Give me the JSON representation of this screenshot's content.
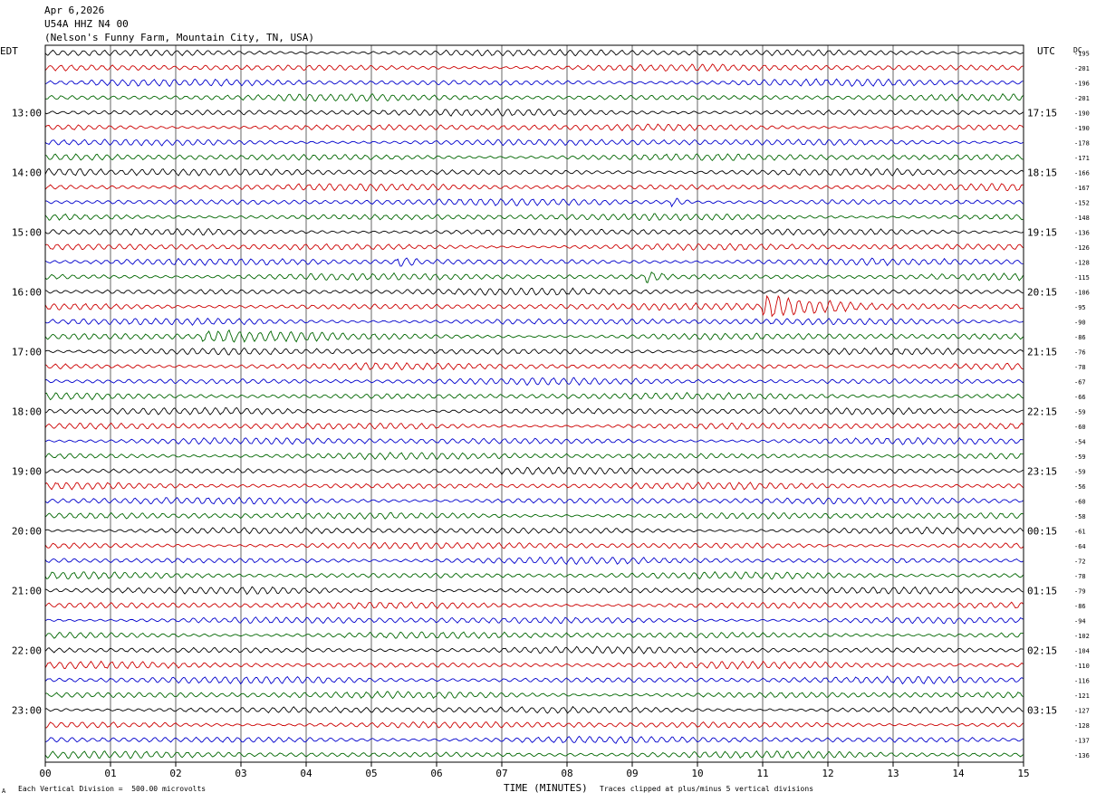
{
  "header": {
    "date": "Apr 6,2026",
    "station": "U54A HHZ N4 00",
    "location": "(Nelson's Funny Farm, Mountain City, TN, USA)"
  },
  "left_axis_label": "EDT",
  "right_axis_label": "UTC",
  "dc_label": "DC",
  "footer": {
    "scale": "Each Vertical Division =  500.00 microvolts",
    "clip": "Traces clipped at plus/minus 5 vertical divisions",
    "corner_mark": "A"
  },
  "chart_data": {
    "type": "line",
    "title": "",
    "xlabel": "TIME (MINUTES)",
    "ylabel": "",
    "x_ticks": [
      "00",
      "01",
      "02",
      "03",
      "04",
      "05",
      "06",
      "07",
      "08",
      "09",
      "10",
      "11",
      "12",
      "13",
      "14",
      "15"
    ],
    "xlim": [
      0,
      15
    ],
    "grid": true,
    "trace_colors": [
      "#000000",
      "#cc0000",
      "#0000cc",
      "#006600"
    ],
    "left_hour_labels": [
      "13:00",
      "14:00",
      "15:00",
      "16:00",
      "17:00",
      "18:00",
      "19:00",
      "20:00",
      "21:00",
      "22:00",
      "23:00"
    ],
    "right_hour_labels": [
      "17:15",
      "18:15",
      "19:15",
      "20:15",
      "21:15",
      "22:15",
      "23:15",
      "00:15",
      "01:15",
      "02:15",
      "03:15"
    ],
    "dc_offsets": [
      "-195",
      "-201",
      "-196",
      "-201",
      "-190",
      "-190",
      "-178",
      "-171",
      "-166",
      "-167",
      "-152",
      "-148",
      "-136",
      "-126",
      "-128",
      "-115",
      "-106",
      "-95",
      "-90",
      "-86",
      "-76",
      "-78",
      "-67",
      "-66",
      "-59",
      "-60",
      "-54",
      "-59",
      "-59",
      "-56",
      "-60",
      "-58",
      "-61",
      "-64",
      "-72",
      "-78",
      "-79",
      "-86",
      "-94",
      "-102",
      "-104",
      "-110",
      "-116",
      "-121",
      "-127",
      "-128",
      "-137",
      "-136"
    ],
    "events": [
      {
        "row": 17,
        "start_min": 11.0,
        "end_min": 14.0,
        "gain": 4.0
      },
      {
        "row": 15,
        "start_min": 9.2,
        "end_min": 9.6,
        "gain": 1.8
      },
      {
        "row": 14,
        "start_min": 5.4,
        "end_min": 5.8,
        "gain": 1.8
      },
      {
        "row": 8,
        "start_min": 0.0,
        "end_min": 1.0,
        "gain": 1.6
      },
      {
        "row": 19,
        "start_min": 2.4,
        "end_min": 4.6,
        "gain": 1.8
      },
      {
        "row": 10,
        "start_min": 9.6,
        "end_min": 9.9,
        "gain": 2.0
      }
    ]
  }
}
